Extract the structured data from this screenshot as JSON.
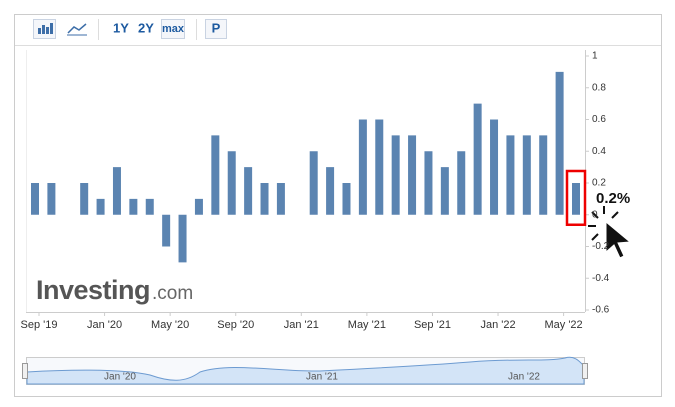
{
  "toolbar": {
    "buttons": [
      "1Y",
      "2Y",
      "max",
      "P"
    ]
  },
  "chart_data": {
    "type": "bar",
    "categories": [
      "Sep '19",
      null,
      null,
      null,
      "Jan '20",
      null,
      null,
      null,
      "May '20",
      null,
      null,
      null,
      "Sep '20",
      null,
      null,
      null,
      "Jan '21",
      null,
      null,
      null,
      "May '21",
      null,
      null,
      null,
      "Sep '21",
      null,
      null,
      null,
      "Jan '22",
      null,
      null,
      null,
      "May '22",
      null
    ],
    "values": [
      0.2,
      0.2,
      0,
      0.2,
      0.1,
      0.3,
      0.1,
      0.1,
      -0.2,
      -0.3,
      0.1,
      0.5,
      0.4,
      0.3,
      0.2,
      0.2,
      0,
      0.4,
      0.3,
      0.2,
      0.6,
      0.6,
      0.5,
      0.5,
      0.4,
      0.3,
      0.4,
      0.7,
      0.6,
      0.5,
      0.5,
      0.5,
      0.9,
      0.2
    ],
    "value_labels": [
      null,
      null,
      null,
      null,
      null,
      null,
      null,
      null,
      null,
      null,
      null,
      null,
      null,
      null,
      null,
      null,
      null,
      null,
      null,
      null,
      null,
      null,
      null,
      null,
      null,
      null,
      null,
      null,
      null,
      null,
      null,
      null,
      null,
      "0.2%"
    ],
    "color": "#5b84b1",
    "ylim": [
      -0.6,
      1
    ],
    "yticks": [
      -0.6,
      -0.4,
      -0.2,
      0,
      0.2,
      0.4,
      0.6,
      0.8,
      1
    ],
    "brand": "Investing",
    "brand_suffix": ".com"
  },
  "navigator": {
    "labels": [
      "Jan '20",
      "Jan '21",
      "Jan '22"
    ]
  }
}
